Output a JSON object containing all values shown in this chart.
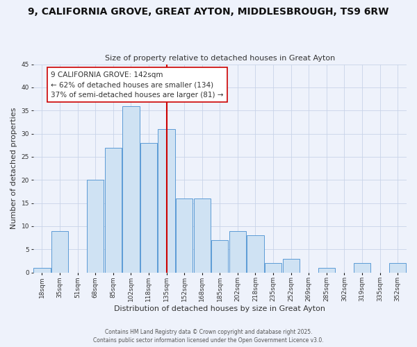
{
  "title": "9, CALIFORNIA GROVE, GREAT AYTON, MIDDLESBROUGH, TS9 6RW",
  "subtitle": "Size of property relative to detached houses in Great Ayton",
  "xlabel": "Distribution of detached houses by size in Great Ayton",
  "ylabel": "Number of detached properties",
  "bar_labels": [
    "18sqm",
    "35sqm",
    "51sqm",
    "68sqm",
    "85sqm",
    "102sqm",
    "118sqm",
    "135sqm",
    "152sqm",
    "168sqm",
    "185sqm",
    "202sqm",
    "218sqm",
    "235sqm",
    "252sqm",
    "269sqm",
    "285sqm",
    "302sqm",
    "319sqm",
    "335sqm",
    "352sqm"
  ],
  "bar_values": [
    1,
    9,
    0,
    20,
    27,
    36,
    28,
    31,
    16,
    16,
    7,
    9,
    8,
    2,
    3,
    0,
    1,
    0,
    2,
    0,
    2
  ],
  "bar_color": "#cfe2f3",
  "bar_edge_color": "#5b9bd5",
  "ylim": [
    0,
    45
  ],
  "yticks": [
    0,
    5,
    10,
    15,
    20,
    25,
    30,
    35,
    40,
    45
  ],
  "vline_pos": 7.5,
  "annotation_title": "9 CALIFORNIA GROVE: 142sqm",
  "annotation_line1": "← 62% of detached houses are smaller (134)",
  "annotation_line2": "37% of semi-detached houses are larger (81) →",
  "vline_color": "#cc0000",
  "annotation_box_color": "#ffffff",
  "annotation_box_edge": "#cc0000",
  "footer1": "Contains HM Land Registry data © Crown copyright and database right 2025.",
  "footer2": "Contains public sector information licensed under the Open Government Licence v3.0.",
  "bg_color": "#eef2fb",
  "grid_color": "#c8d4e8",
  "title_fontsize": 10,
  "subtitle_fontsize": 8,
  "ylabel_fontsize": 8,
  "xlabel_fontsize": 8,
  "tick_fontsize": 6.5,
  "annot_fontsize": 7.5,
  "footer_fontsize": 5.5
}
